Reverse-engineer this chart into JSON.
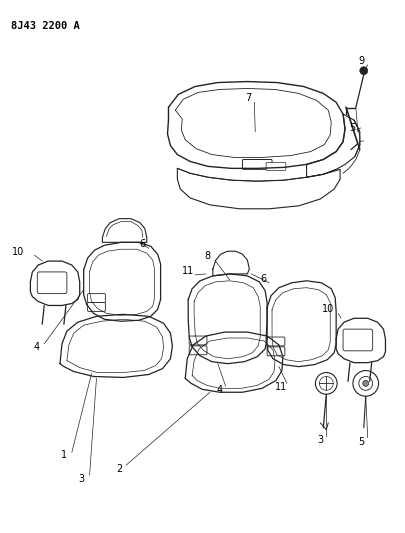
{
  "title": "8J43 2200 A",
  "bg": "#ffffff",
  "lc": "#222222",
  "fig_w": 4.06,
  "fig_h": 5.33,
  "dpi": 100
}
